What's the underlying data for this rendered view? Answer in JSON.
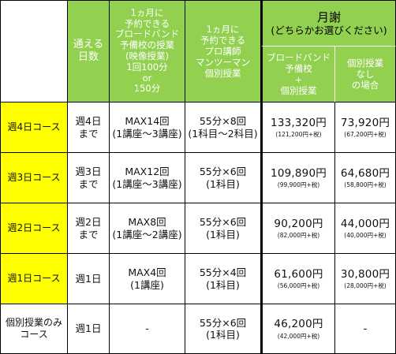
{
  "header": {
    "days": [
      "通える",
      "日数"
    ],
    "broadband": [
      "1ヵ月に",
      "予約できる",
      "ブロードバンド",
      "予備校の授業",
      "(映像授業)",
      "1回100分",
      "or",
      "150分"
    ],
    "private": [
      "1ヵ月に",
      "予約できる",
      "プロ講師",
      "マンツーマン",
      "個別授業"
    ],
    "fee_title": "月謝",
    "fee_sub": "(どちらかお選びください)",
    "fee_bb": [
      "ブロードバンド",
      "予備校",
      "+",
      "個別授業"
    ],
    "fee_private": [
      "個別授業",
      "なし",
      "の場合"
    ]
  },
  "rows": [
    {
      "course": "週4日コース",
      "days": [
        "週4日",
        "まで"
      ],
      "bb": [
        "MAX14回",
        "(1講座〜3講座)"
      ],
      "pv": [
        "55分×8回",
        "(1科目〜2科目)"
      ],
      "fee_bb": "133,320円",
      "fee_bb_tax": "(121,200円+税)",
      "fee_pv": "73,920円",
      "fee_pv_tax": "(67,200円+税)"
    },
    {
      "course": "週3日コース",
      "days": [
        "週3日",
        "まで"
      ],
      "bb": [
        "MAX12回",
        "(1講座〜3講座)"
      ],
      "pv": [
        "55分×6回",
        "(1科目)"
      ],
      "fee_bb": "109,890円",
      "fee_bb_tax": "(99,900円+税)",
      "fee_pv": "64,680円",
      "fee_pv_tax": "(58,800円+税)"
    },
    {
      "course": "週2日コース",
      "days": [
        "週2日",
        "まで"
      ],
      "bb": [
        "MAX8回",
        "(1講座〜2講座)"
      ],
      "pv": [
        "55分×6回",
        "(1科目)"
      ],
      "fee_bb": "90,200円",
      "fee_bb_tax": "(82,000円+税)",
      "fee_pv": "44,000円",
      "fee_pv_tax": "(40,000円+税)"
    },
    {
      "course": "週1日コース",
      "days": [
        "週1日",
        ""
      ],
      "bb": [
        "MAX4回",
        "(1講座)"
      ],
      "pv": [
        "55分×4回",
        "(1科目)"
      ],
      "fee_bb": "61,600円",
      "fee_bb_tax": "(56,000円+税)",
      "fee_pv": "30,800円",
      "fee_pv_tax": "(28,000円+税)"
    },
    {
      "course": [
        "個別授業のみ",
        "コース"
      ],
      "days": [
        "週1日",
        ""
      ],
      "bb": [
        "-",
        ""
      ],
      "pv": [
        "55分×6回",
        "(1科目)"
      ],
      "fee_bb": "46,200円",
      "fee_bb_tax": "(42,000円+税)",
      "fee_pv": "-",
      "fee_pv_tax": ""
    }
  ],
  "colors": {
    "header_green": "#92d050",
    "course_yellow": "#ffff00",
    "border": "#000000"
  }
}
